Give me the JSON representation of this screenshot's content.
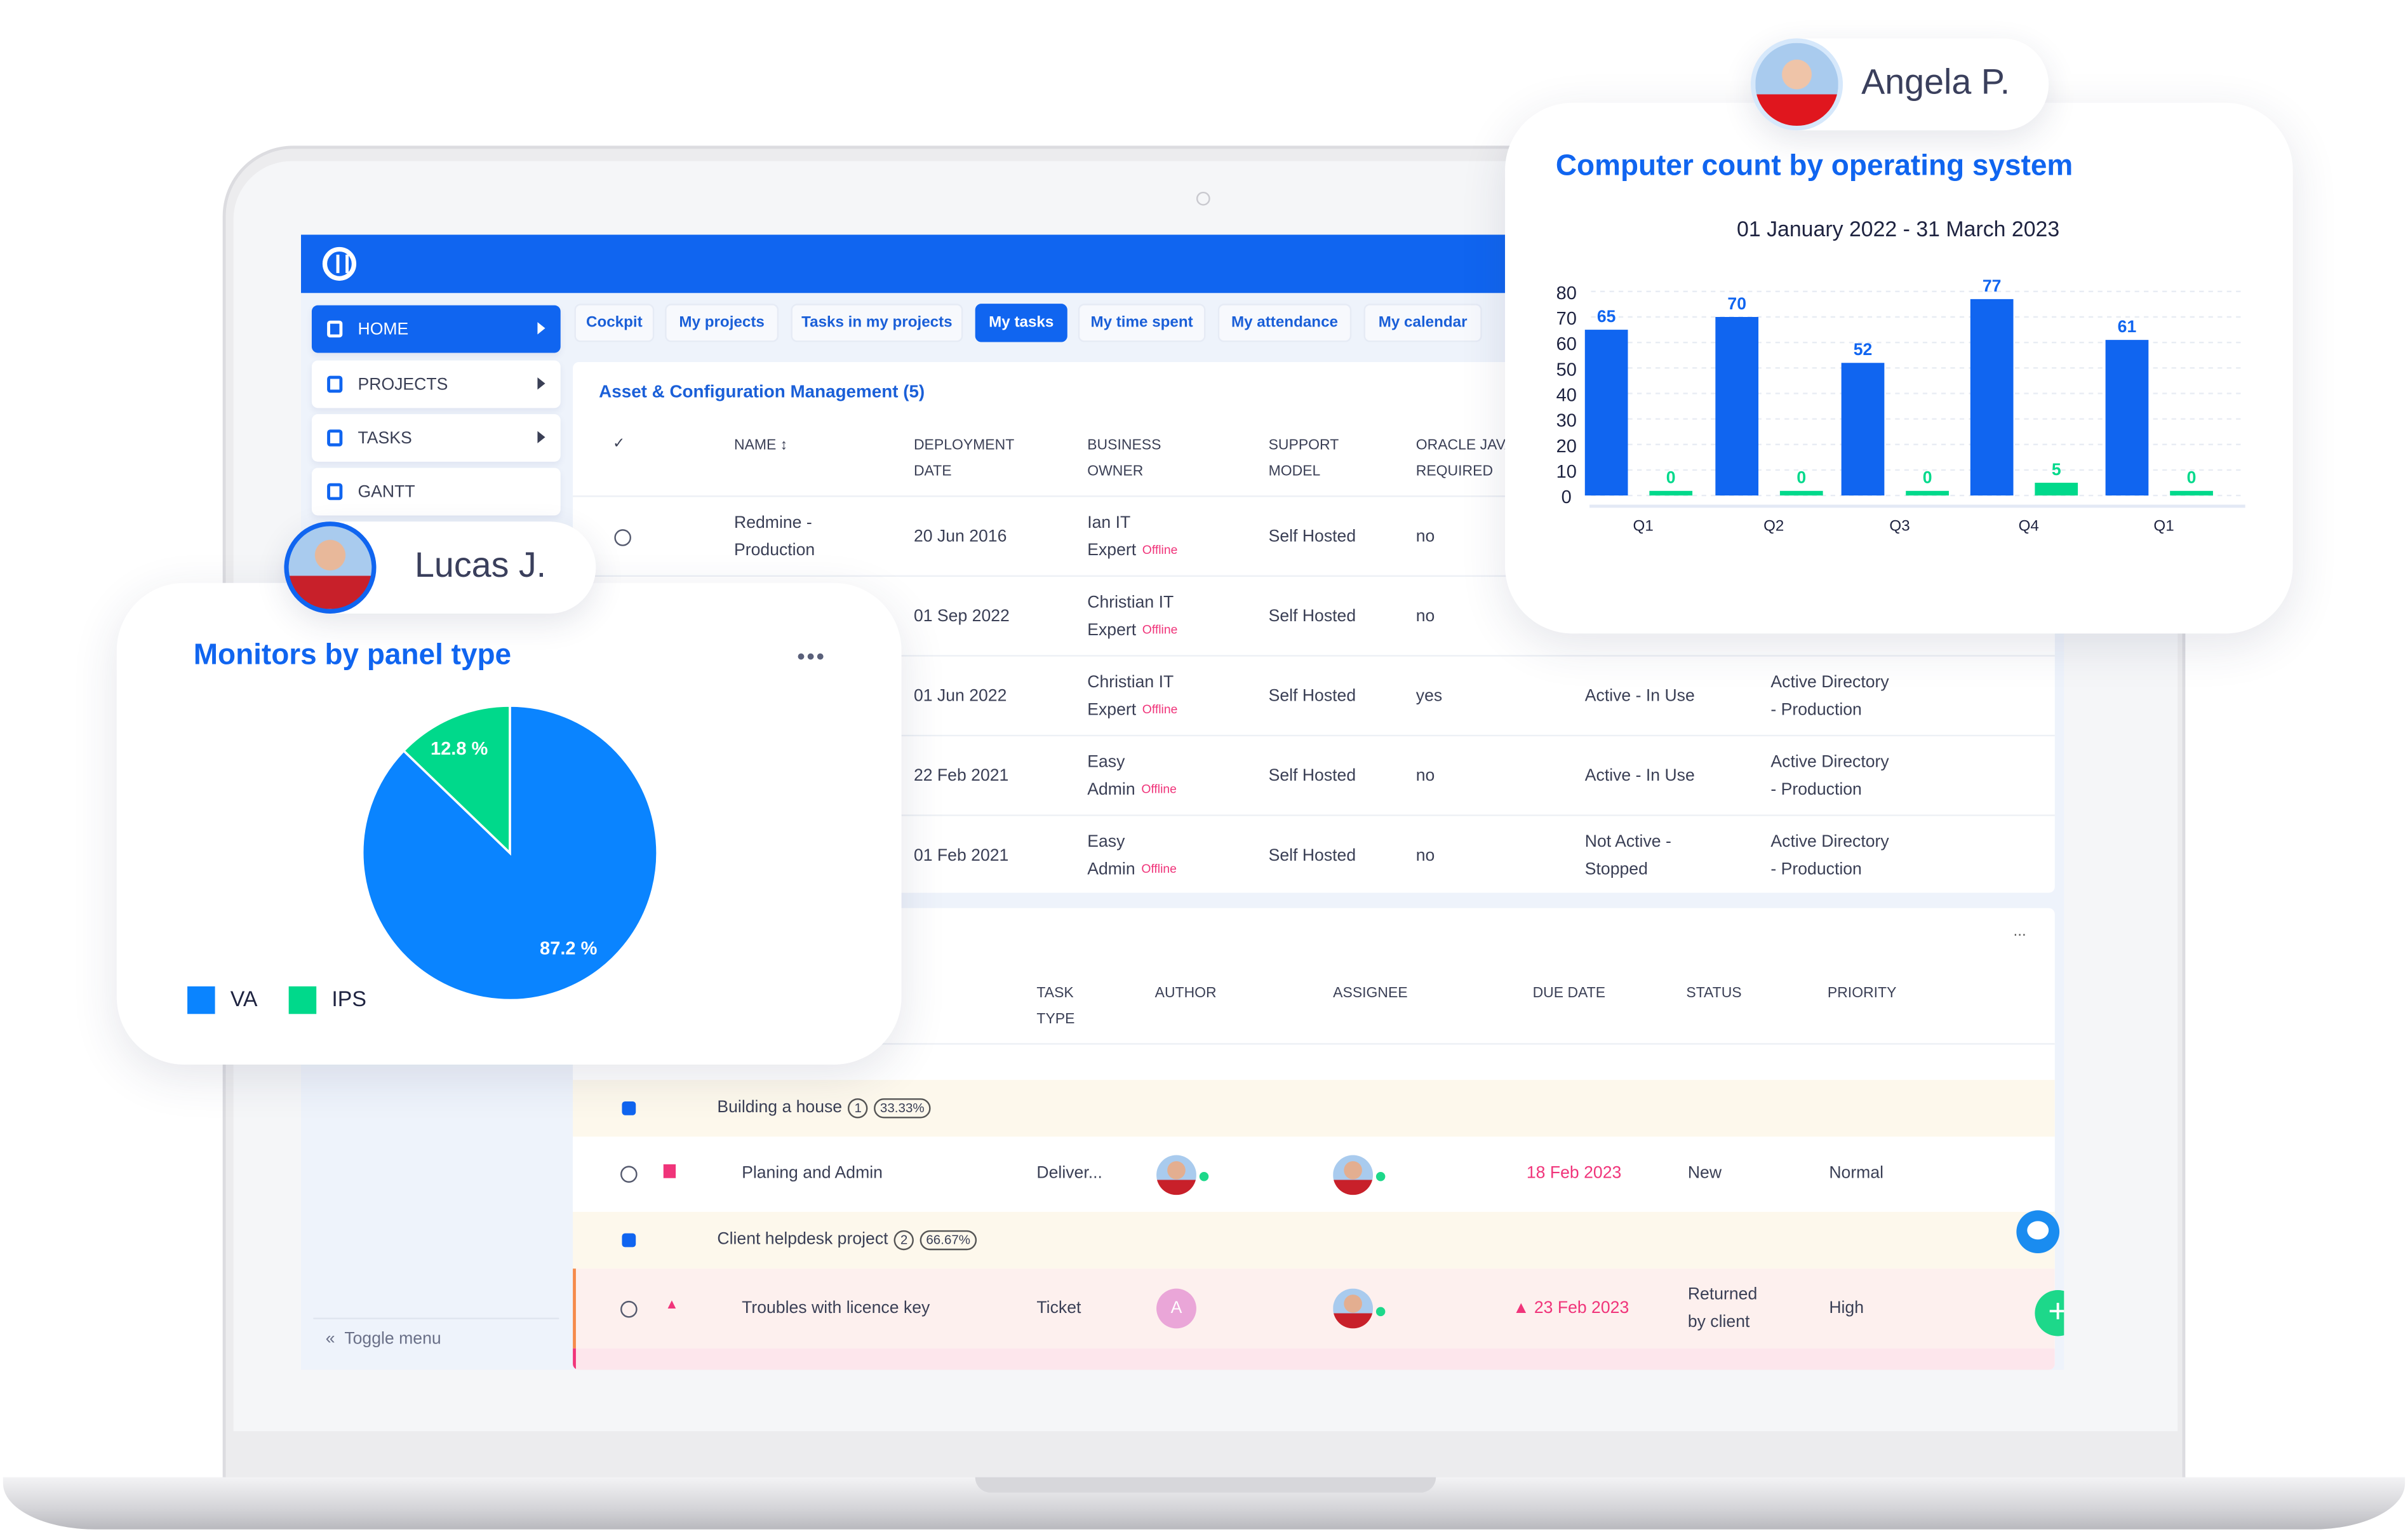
{
  "colors": {
    "brand": "#1065f0",
    "accent_green": "#00d98b",
    "overdue": "#f0347a"
  },
  "sidebar": {
    "items": [
      {
        "label": "HOME",
        "icon": "dashboard-icon",
        "active": true
      },
      {
        "label": "PROJECTS",
        "icon": "hierarchy-icon"
      },
      {
        "label": "TASKS",
        "icon": "clipboard-icon"
      },
      {
        "label": "GANTT",
        "icon": "gantt-icon"
      }
    ],
    "toggle_label": "Toggle menu"
  },
  "tabs": [
    {
      "label": "Cockpit"
    },
    {
      "label": "My projects"
    },
    {
      "label": "Tasks in my projects"
    },
    {
      "label": "My tasks",
      "active": true
    },
    {
      "label": "My time spent"
    },
    {
      "label": "My attendance"
    },
    {
      "label": "My calendar"
    }
  ],
  "asset_table": {
    "title": "Asset & Configuration Management (5)",
    "headers": [
      "✓",
      "NAME",
      "DEPLOYMENT DATE",
      "BUSINESS OWNER",
      "SUPPORT MODEL",
      "ORACLE JAVA REQUIRED"
    ],
    "header_lines": {
      "name": "NAME",
      "deploy1": "DEPLOYMENT",
      "deploy2": "DATE",
      "owner1": "BUSINESS",
      "owner2": "OWNER",
      "support1": "SUPPORT",
      "support2": "MODEL",
      "oracle1": "ORACLE JAV",
      "oracle2": "REQUIRED"
    },
    "offline_label": "Offline",
    "rows": [
      {
        "name1": "Redmine -",
        "name2": "Production",
        "date": "20 Jun 2016",
        "owner1": "Ian IT",
        "owner2": "Expert",
        "support": "Self Hosted",
        "oracle": "no",
        "status1": "",
        "status2": "",
        "dir1": "",
        "dir2": ""
      },
      {
        "name1": "",
        "name2": "",
        "date": "01 Sep 2022",
        "owner1": "Christian IT",
        "owner2": "Expert",
        "support": "Self Hosted",
        "oracle": "no",
        "status1": "",
        "status2": "",
        "dir1": "",
        "dir2": ""
      },
      {
        "name1": "",
        "name2": "",
        "date": "01 Jun 2022",
        "owner1": "Christian IT",
        "owner2": "Expert",
        "support": "Self Hosted",
        "oracle": "yes",
        "status1": "Active - In Use",
        "status2": "",
        "dir1": "Active Directory",
        "dir2": "- Production"
      },
      {
        "name1": "",
        "name2": "",
        "date": "22 Feb 2021",
        "owner1": "Easy",
        "owner2": "Admin",
        "support": "Self Hosted",
        "oracle": "no",
        "status1": "Active - In Use",
        "status2": "",
        "dir1": "Active Directory",
        "dir2": "- Production"
      },
      {
        "name1": "",
        "name2": "",
        "date": "01 Feb 2021",
        "owner1": "Easy",
        "owner2": "Admin",
        "support": "Self Hosted",
        "oracle": "no",
        "status1": "Not Active -",
        "status2": "Stopped",
        "dir1": "Active Directory",
        "dir2": "- Production"
      }
    ]
  },
  "task_table": {
    "more_label": "...",
    "headers": {
      "type1": "TASK",
      "type2": "TYPE",
      "author": "AUTHOR",
      "assignee": "ASSIGNEE",
      "due": "DUE DATE",
      "status": "STATUS",
      "priority": "PRIORITY"
    },
    "groups": [
      {
        "name": "Building a house",
        "count": "1",
        "percent": "33.33%",
        "task": {
          "name": "Planing and Admin",
          "type": "Deliver...",
          "due": "18 Feb 2023",
          "status1": "New",
          "status2": "",
          "priority": "Normal"
        }
      },
      {
        "name": "Client helpdesk project",
        "count": "2",
        "percent": "66.67%",
        "task": {
          "name": "Troubles with licence key",
          "type": "Ticket",
          "author_initial": "A",
          "due": "▲ 23 Feb 2023",
          "status1": "Returned",
          "status2": "by client",
          "priority": "High"
        }
      }
    ]
  },
  "lucas": {
    "name": "Lucas J."
  },
  "angela": {
    "name": "Angela P."
  },
  "chart_data": [
    {
      "type": "pie",
      "title": "Monitors by panel type",
      "more_label": "•••",
      "slices": [
        {
          "name": "VA",
          "value": 87.2,
          "label": "87.2 %",
          "color": "#0a84ff"
        },
        {
          "name": "IPS",
          "value": 12.8,
          "label": "12.8 %",
          "color": "#00d98b"
        }
      ],
      "legend": "bottom-left"
    },
    {
      "type": "bar",
      "title": "Computer count by operating system",
      "subtitle": "01 January 2022 - 31 March 2023",
      "categories": [
        "Q1",
        "Q2",
        "Q3",
        "Q4",
        "Q1"
      ],
      "series": [
        {
          "values": [
            65,
            70,
            52,
            77,
            61
          ],
          "color": "#1065f0"
        },
        {
          "values": [
            0,
            0,
            0,
            5,
            0
          ],
          "color": "#00d98b"
        }
      ],
      "ylim": [
        0,
        80
      ],
      "yticks": [
        "80",
        "70",
        "60",
        "50",
        "40",
        "30",
        "20",
        "10",
        "0"
      ],
      "grid": true
    }
  ]
}
